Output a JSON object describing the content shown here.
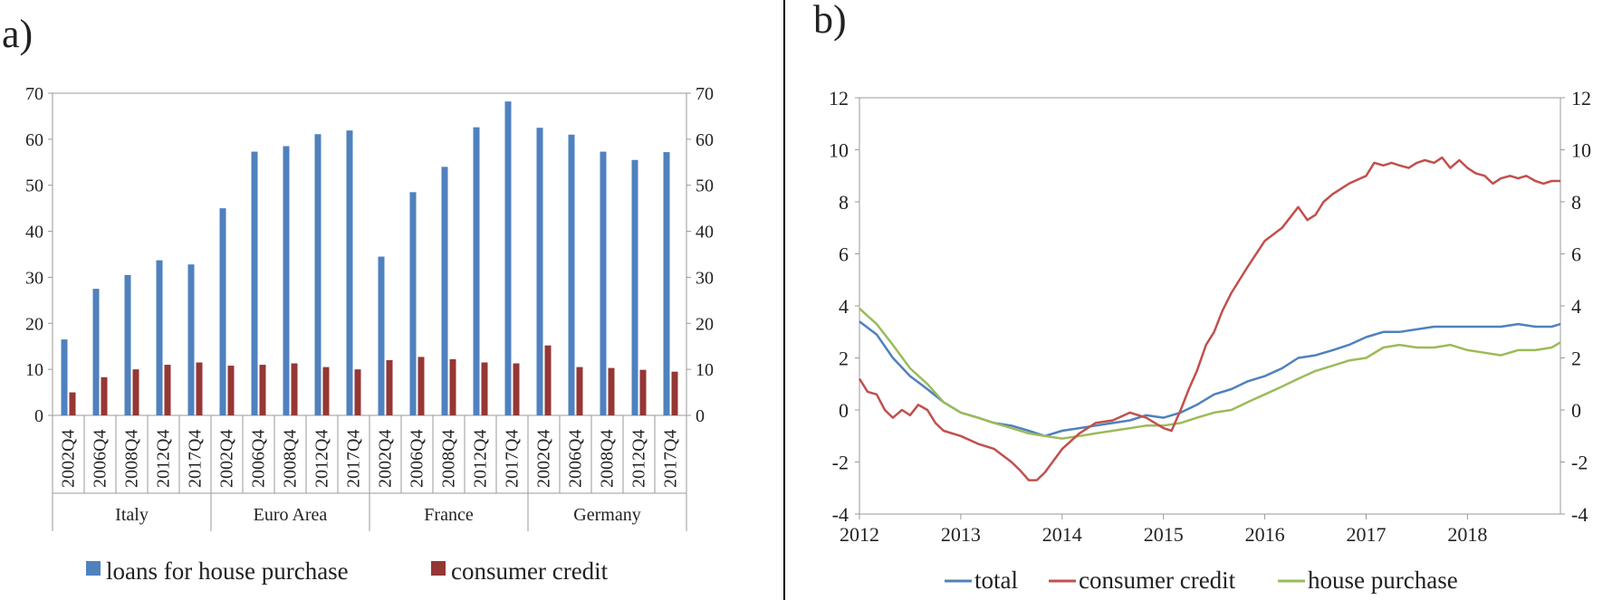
{
  "figure": {
    "panel_a_label": "a)",
    "panel_b_label": "b)"
  },
  "colors": {
    "loans_bar": "#4f81bd",
    "consumer_bar": "#953735",
    "total_line": "#4f81bd",
    "consumer_line": "#c0504d",
    "house_line": "#9bbb59",
    "axis": "#888888",
    "divider": "#000000"
  },
  "chart_data": [
    {
      "type": "bar",
      "panel": "a)",
      "ylim": [
        0,
        70
      ],
      "yticks": [
        0,
        10,
        20,
        30,
        40,
        50,
        60,
        70
      ],
      "grid": false,
      "legend_position": "bottom",
      "groups": [
        {
          "name": "Italy",
          "categories": [
            "2002Q4",
            "2006Q4",
            "2008Q4",
            "2012Q4",
            "2017Q4"
          ]
        },
        {
          "name": "Euro Area",
          "categories": [
            "2002Q4",
            "2006Q4",
            "2008Q4",
            "2012Q4",
            "2017Q4"
          ]
        },
        {
          "name": "France",
          "categories": [
            "2002Q4",
            "2006Q4",
            "2008Q4",
            "2012Q4",
            "2017Q4"
          ]
        },
        {
          "name": "Germany",
          "categories": [
            "2002Q4",
            "2006Q4",
            "2008Q4",
            "2012Q4",
            "2017Q4"
          ]
        }
      ],
      "series": [
        {
          "name": "loans for house purchase",
          "color": "#4f81bd",
          "values": [
            16.5,
            27.5,
            30.5,
            33.7,
            32.8,
            45,
            57.3,
            58.5,
            61.1,
            61.9,
            34.5,
            48.5,
            54,
            62.6,
            68.2,
            62.5,
            61,
            57.3,
            55.5,
            57.2
          ]
        },
        {
          "name": "consumer credit",
          "color": "#953735",
          "values": [
            5,
            8.3,
            10,
            11,
            11.5,
            10.8,
            11,
            11.3,
            10.5,
            10,
            12,
            12.7,
            12.2,
            11.5,
            11.3,
            15.2,
            10.5,
            10.3,
            9.9,
            9.5
          ]
        }
      ]
    },
    {
      "type": "line",
      "panel": "b)",
      "xlim": [
        2012,
        2018.917
      ],
      "xticks": [
        2012,
        2013,
        2014,
        2015,
        2016,
        2017,
        2018
      ],
      "ylim": [
        -4,
        12
      ],
      "yticks": [
        -4,
        -2,
        0,
        2,
        4,
        6,
        8,
        10,
        12
      ],
      "grid": false,
      "legend_position": "bottom",
      "series": [
        {
          "name": "total",
          "color": "#4f81bd",
          "x": [
            2012,
            2012.17,
            2012.33,
            2012.5,
            2012.67,
            2012.83,
            2013,
            2013.17,
            2013.33,
            2013.5,
            2013.67,
            2013.83,
            2014,
            2014.17,
            2014.33,
            2014.5,
            2014.67,
            2014.83,
            2015,
            2015.17,
            2015.33,
            2015.5,
            2015.67,
            2015.83,
            2016,
            2016.17,
            2016.33,
            2016.5,
            2016.67,
            2016.83,
            2017,
            2017.17,
            2017.33,
            2017.5,
            2017.67,
            2017.83,
            2018,
            2018.17,
            2018.33,
            2018.5,
            2018.67,
            2018.83,
            2018.917
          ],
          "y": [
            3.4,
            2.9,
            2.0,
            1.3,
            0.8,
            0.3,
            -0.1,
            -0.3,
            -0.5,
            -0.6,
            -0.8,
            -1.0,
            -0.8,
            -0.7,
            -0.6,
            -0.5,
            -0.4,
            -0.2,
            -0.3,
            -0.1,
            0.2,
            0.6,
            0.8,
            1.1,
            1.3,
            1.6,
            2.0,
            2.1,
            2.3,
            2.5,
            2.8,
            3.0,
            3.0,
            3.1,
            3.2,
            3.2,
            3.2,
            3.2,
            3.2,
            3.3,
            3.2,
            3.2,
            3.3
          ]
        },
        {
          "name": "consumer credit",
          "color": "#c0504d",
          "x": [
            2012,
            2012.08,
            2012.17,
            2012.25,
            2012.33,
            2012.42,
            2012.5,
            2012.58,
            2012.67,
            2012.75,
            2012.83,
            2013,
            2013.17,
            2013.33,
            2013.5,
            2013.58,
            2013.67,
            2013.75,
            2013.83,
            2014,
            2014.17,
            2014.33,
            2014.5,
            2014.67,
            2014.83,
            2015,
            2015.08,
            2015.17,
            2015.25,
            2015.33,
            2015.42,
            2015.5,
            2015.58,
            2015.67,
            2015.83,
            2016,
            2016.17,
            2016.33,
            2016.42,
            2016.5,
            2016.58,
            2016.67,
            2016.83,
            2017,
            2017.08,
            2017.17,
            2017.25,
            2017.33,
            2017.42,
            2017.5,
            2017.58,
            2017.67,
            2017.75,
            2017.83,
            2017.92,
            2018,
            2018.08,
            2018.17,
            2018.25,
            2018.33,
            2018.42,
            2018.5,
            2018.58,
            2018.67,
            2018.75,
            2018.83,
            2018.917
          ],
          "y": [
            1.2,
            0.7,
            0.6,
            0.0,
            -0.3,
            0.0,
            -0.2,
            0.2,
            0.0,
            -0.5,
            -0.8,
            -1.0,
            -1.3,
            -1.5,
            -2.0,
            -2.3,
            -2.7,
            -2.7,
            -2.4,
            -1.5,
            -0.9,
            -0.5,
            -0.4,
            -0.1,
            -0.3,
            -0.7,
            -0.8,
            0.0,
            0.8,
            1.5,
            2.5,
            3.0,
            3.8,
            4.5,
            5.5,
            6.5,
            7.0,
            7.8,
            7.3,
            7.5,
            8.0,
            8.3,
            8.7,
            9.0,
            9.5,
            9.4,
            9.5,
            9.4,
            9.3,
            9.5,
            9.6,
            9.5,
            9.7,
            9.3,
            9.6,
            9.3,
            9.1,
            9.0,
            8.7,
            8.9,
            9.0,
            8.9,
            9.0,
            8.8,
            8.7,
            8.8,
            8.8
          ]
        },
        {
          "name": "house purchase",
          "color": "#9bbb59",
          "x": [
            2012,
            2012.17,
            2012.33,
            2012.5,
            2012.67,
            2012.83,
            2013,
            2013.17,
            2013.33,
            2013.5,
            2013.67,
            2013.83,
            2014,
            2014.17,
            2014.33,
            2014.5,
            2014.67,
            2014.83,
            2015,
            2015.17,
            2015.33,
            2015.5,
            2015.67,
            2015.83,
            2016,
            2016.17,
            2016.33,
            2016.5,
            2016.67,
            2016.83,
            2017,
            2017.17,
            2017.33,
            2017.5,
            2017.67,
            2017.83,
            2018,
            2018.17,
            2018.33,
            2018.5,
            2018.67,
            2018.83,
            2018.917
          ],
          "y": [
            3.9,
            3.3,
            2.5,
            1.6,
            1.0,
            0.3,
            -0.1,
            -0.3,
            -0.5,
            -0.7,
            -0.9,
            -1.0,
            -1.1,
            -1.0,
            -0.9,
            -0.8,
            -0.7,
            -0.6,
            -0.6,
            -0.5,
            -0.3,
            -0.1,
            0.0,
            0.3,
            0.6,
            0.9,
            1.2,
            1.5,
            1.7,
            1.9,
            2.0,
            2.4,
            2.5,
            2.4,
            2.4,
            2.5,
            2.3,
            2.2,
            2.1,
            2.3,
            2.3,
            2.4,
            2.6
          ]
        }
      ]
    }
  ]
}
